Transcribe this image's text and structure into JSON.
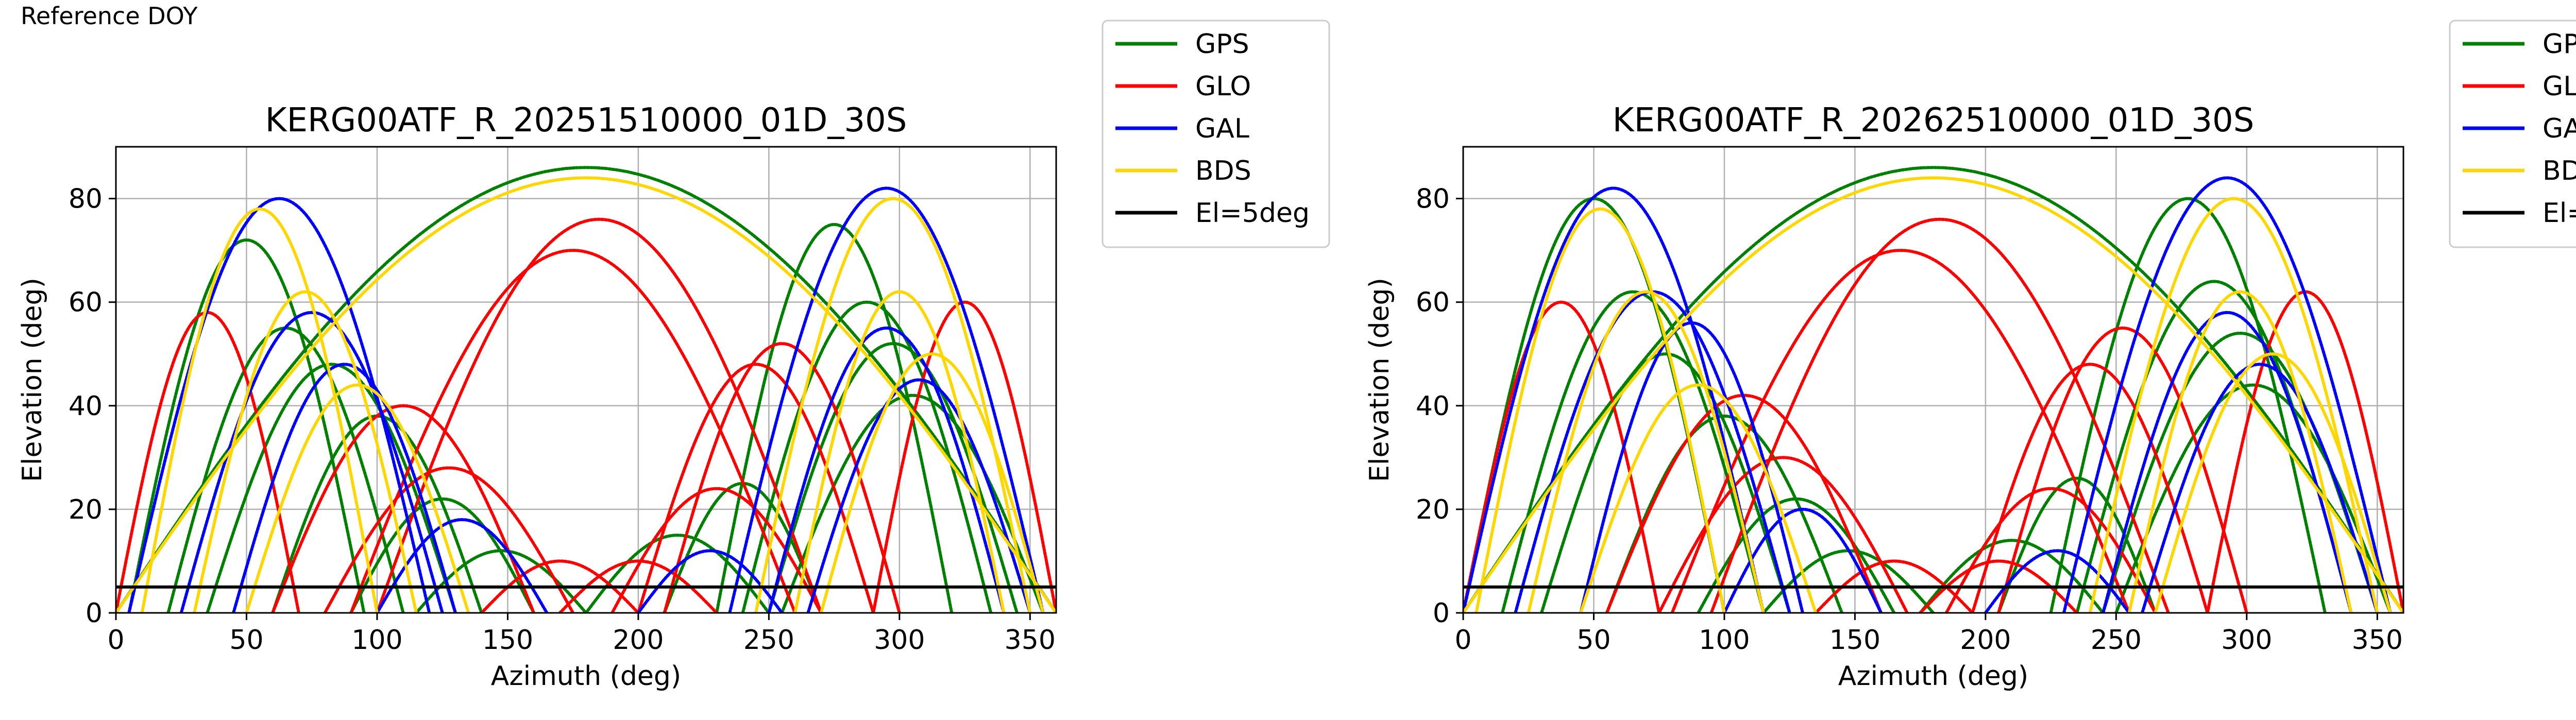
{
  "page": {
    "reference_label": "Reference DOY"
  },
  "colors": {
    "GPS": "#008000",
    "GLO": "#ff0000",
    "GAL": "#0000ff",
    "BDS": "#ffd700",
    "El=5deg": "#000000"
  },
  "legend": {
    "placement": "outside-right-top",
    "entries": [
      "GPS",
      "GLO",
      "GAL",
      "BDS",
      "El=5deg"
    ]
  },
  "chart_data": [
    {
      "type": "scatter",
      "title": "KERG00ATF_R_20251510000_01D_30S",
      "xlabel": "Azimuth (deg)",
      "ylabel": "Elevation (deg)",
      "xlim": [
        0,
        360
      ],
      "ylim": [
        0,
        90
      ],
      "xticks": [
        0,
        50,
        100,
        150,
        200,
        250,
        300,
        350
      ],
      "yticks": [
        0,
        20,
        40,
        60,
        80
      ],
      "grid": true,
      "series": [
        {
          "name": "GPS",
          "color": "#008000",
          "arcs": [
            {
              "az0": 5,
              "az1": 95,
              "peak": 72
            },
            {
              "az0": 20,
              "az1": 110,
              "peak": 55
            },
            {
              "az0": 35,
              "az1": 130,
              "peak": 48
            },
            {
              "az0": 60,
              "az1": 140,
              "peak": 38
            },
            {
              "az0": 90,
              "az1": 160,
              "peak": 22
            },
            {
              "az0": 115,
              "az1": 180,
              "peak": 12
            },
            {
              "az0": 230,
              "az1": 320,
              "peak": 75
            },
            {
              "az0": 240,
              "az1": 335,
              "peak": 60
            },
            {
              "az0": 250,
              "az1": 345,
              "peak": 52
            },
            {
              "az0": 255,
              "az1": 355,
              "peak": 42
            },
            {
              "az0": 210,
              "az1": 270,
              "peak": 25
            },
            {
              "az0": 180,
              "az1": 250,
              "peak": 15
            },
            {
              "az0": 0,
              "az1": 360,
              "peak": 86
            }
          ]
        },
        {
          "name": "GLO",
          "color": "#ff0000",
          "arcs": [
            {
              "az0": 90,
              "az1": 260,
              "peak": 70
            },
            {
              "az0": 100,
              "az1": 270,
              "peak": 76
            },
            {
              "az0": 60,
              "az1": 160,
              "peak": 40
            },
            {
              "az0": 80,
              "az1": 175,
              "peak": 28
            },
            {
              "az0": 140,
              "az1": 200,
              "peak": 10
            },
            {
              "az0": 170,
              "az1": 230,
              "peak": 10
            },
            {
              "az0": 200,
              "az1": 290,
              "peak": 48
            },
            {
              "az0": 210,
              "az1": 300,
              "peak": 52
            },
            {
              "az0": 190,
              "az1": 270,
              "peak": 24
            },
            {
              "az0": 0,
              "az1": 70,
              "peak": 58
            },
            {
              "az0": 290,
              "az1": 360,
              "peak": 60
            }
          ]
        },
        {
          "name": "GAL",
          "color": "#0000ff",
          "arcs": [
            {
              "az0": 5,
              "az1": 120,
              "peak": 80
            },
            {
              "az0": 25,
              "az1": 125,
              "peak": 58
            },
            {
              "az0": 45,
              "az1": 130,
              "peak": 48
            },
            {
              "az0": 100,
              "az1": 165,
              "peak": 18
            },
            {
              "az0": 235,
              "az1": 355,
              "peak": 82
            },
            {
              "az0": 250,
              "az1": 340,
              "peak": 55
            },
            {
              "az0": 265,
              "az1": 350,
              "peak": 45
            },
            {
              "az0": 200,
              "az1": 255,
              "peak": 12
            }
          ]
        },
        {
          "name": "BDS",
          "color": "#ffd700",
          "arcs": [
            {
              "az0": 10,
              "az1": 100,
              "peak": 78
            },
            {
              "az0": 30,
              "az1": 115,
              "peak": 62
            },
            {
              "az0": 50,
              "az1": 135,
              "peak": 44
            },
            {
              "az0": 245,
              "az1": 350,
              "peak": 80
            },
            {
              "az0": 260,
              "az1": 340,
              "peak": 62
            },
            {
              "az0": 270,
              "az1": 355,
              "peak": 50
            },
            {
              "az0": 0,
              "az1": 360,
              "peak": 84
            }
          ]
        }
      ],
      "reference_lines": [
        {
          "name": "El=5deg",
          "y": 5,
          "color": "#000000"
        }
      ]
    },
    {
      "type": "scatter",
      "title": "KERG00ATF_R_20262510000_01D_30S",
      "xlabel": "Azimuth (deg)",
      "ylabel": "Elevation (deg)",
      "xlim": [
        0,
        360
      ],
      "ylim": [
        0,
        90
      ],
      "xticks": [
        0,
        50,
        100,
        150,
        200,
        250,
        300,
        350
      ],
      "yticks": [
        0,
        20,
        40,
        60,
        80
      ],
      "grid": true,
      "series": [
        {
          "name": "GPS",
          "color": "#008000",
          "arcs": [
            {
              "az0": 0,
              "az1": 100,
              "peak": 80
            },
            {
              "az0": 15,
              "az1": 115,
              "peak": 62
            },
            {
              "az0": 30,
              "az1": 125,
              "peak": 50
            },
            {
              "az0": 55,
              "az1": 145,
              "peak": 38
            },
            {
              "az0": 90,
              "az1": 165,
              "peak": 22
            },
            {
              "az0": 115,
              "az1": 180,
              "peak": 12
            },
            {
              "az0": 225,
              "az1": 330,
              "peak": 80
            },
            {
              "az0": 235,
              "az1": 340,
              "peak": 64
            },
            {
              "az0": 245,
              "az1": 350,
              "peak": 54
            },
            {
              "az0": 250,
              "az1": 355,
              "peak": 44
            },
            {
              "az0": 205,
              "az1": 265,
              "peak": 26
            },
            {
              "az0": 175,
              "az1": 245,
              "peak": 14
            },
            {
              "az0": 0,
              "az1": 360,
              "peak": 86
            }
          ]
        },
        {
          "name": "GLO",
          "color": "#ff0000",
          "arcs": [
            {
              "az0": 80,
              "az1": 255,
              "peak": 70
            },
            {
              "az0": 95,
              "az1": 270,
              "peak": 76
            },
            {
              "az0": 55,
              "az1": 160,
              "peak": 42
            },
            {
              "az0": 75,
              "az1": 170,
              "peak": 30
            },
            {
              "az0": 135,
              "az1": 195,
              "peak": 10
            },
            {
              "az0": 175,
              "az1": 235,
              "peak": 10
            },
            {
              "az0": 195,
              "az1": 285,
              "peak": 48
            },
            {
              "az0": 205,
              "az1": 300,
              "peak": 55
            },
            {
              "az0": 185,
              "az1": 265,
              "peak": 24
            },
            {
              "az0": 0,
              "az1": 75,
              "peak": 60
            },
            {
              "az0": 285,
              "az1": 360,
              "peak": 62
            }
          ]
        },
        {
          "name": "GAL",
          "color": "#0000ff",
          "arcs": [
            {
              "az0": 0,
              "az1": 115,
              "peak": 82
            },
            {
              "az0": 20,
              "az1": 125,
              "peak": 62
            },
            {
              "az0": 45,
              "az1": 130,
              "peak": 56
            },
            {
              "az0": 100,
              "az1": 160,
              "peak": 20
            },
            {
              "az0": 230,
              "az1": 355,
              "peak": 84
            },
            {
              "az0": 245,
              "az1": 340,
              "peak": 58
            },
            {
              "az0": 260,
              "az1": 350,
              "peak": 48
            },
            {
              "az0": 200,
              "az1": 255,
              "peak": 12
            }
          ]
        },
        {
          "name": "BDS",
          "color": "#ffd700",
          "arcs": [
            {
              "az0": 5,
              "az1": 100,
              "peak": 78
            },
            {
              "az0": 25,
              "az1": 115,
              "peak": 62
            },
            {
              "az0": 45,
              "az1": 135,
              "peak": 44
            },
            {
              "az0": 240,
              "az1": 350,
              "peak": 80
            },
            {
              "az0": 255,
              "az1": 340,
              "peak": 62
            },
            {
              "az0": 265,
              "az1": 355,
              "peak": 50
            },
            {
              "az0": 0,
              "az1": 360,
              "peak": 84
            }
          ]
        }
      ],
      "reference_lines": [
        {
          "name": "El=5deg",
          "y": 5,
          "color": "#000000"
        }
      ]
    }
  ]
}
